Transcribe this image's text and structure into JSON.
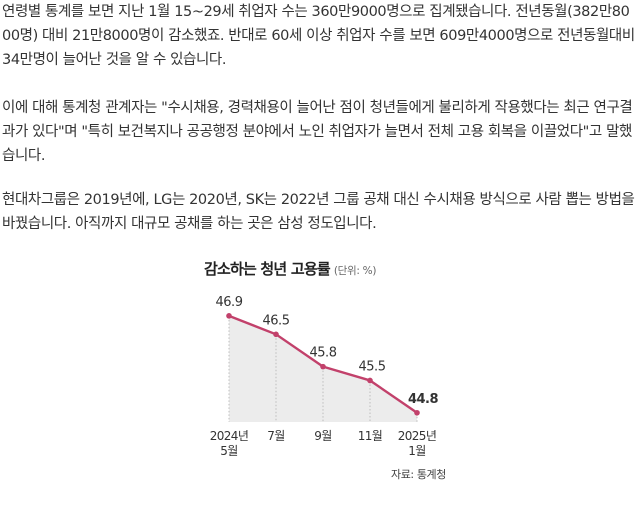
{
  "article": {
    "paragraphs": [
      "연령별 통계를 보면 지난 1월 15~29세 취업자 수는 360만9000명으로 집계됐습니다. 전년동월(382만8000명) 대비 21만8000명이 감소했죠. 반대로 60세 이상 취업자 수를 보면 609만4000명으로 전년동월대비 34만명이 늘어난 것을 알 수 있습니다.",
      "이에 대해 통계청 관계자는 \"수시채용, 경력채용이 늘어난 점이 청년들에게 불리하게 작용했다는 최근 연구결과가 있다\"며 \"특히 보건복지나 공공행정 분야에서 노인 취업자가 늘면서 전체 고용 회복을 이끌었다\"고 말했습니다.",
      "현대차그룹은 2019년에, LG는 2020년, SK는 2022년 그룹 공채 대신 수시채용 방식으로 사람 뽑는 방법을 바꿨습니다. 아직까지 대규모 공채를 하는 곳은 삼성 정도입니다."
    ]
  },
  "chart_data": {
    "type": "area",
    "title": "감소하는 청년 고용률",
    "unit": "(단위: %)",
    "source": "자료: 통계청",
    "categories": [
      [
        "2024년",
        "5월"
      ],
      [
        "7월"
      ],
      [
        "9월"
      ],
      [
        "11월"
      ],
      [
        "2025년",
        "1월"
      ]
    ],
    "values": [
      46.9,
      46.5,
      45.8,
      45.5,
      44.8
    ],
    "value_labels": [
      "46.9",
      "46.5",
      "45.8",
      "45.5",
      "44.8"
    ],
    "ylim": [
      44.6,
      47.2
    ],
    "grid": "vertical dotted",
    "colors": {
      "line": "#c2416b",
      "fill": "#ececec",
      "grid": "#bdbdbd"
    }
  }
}
